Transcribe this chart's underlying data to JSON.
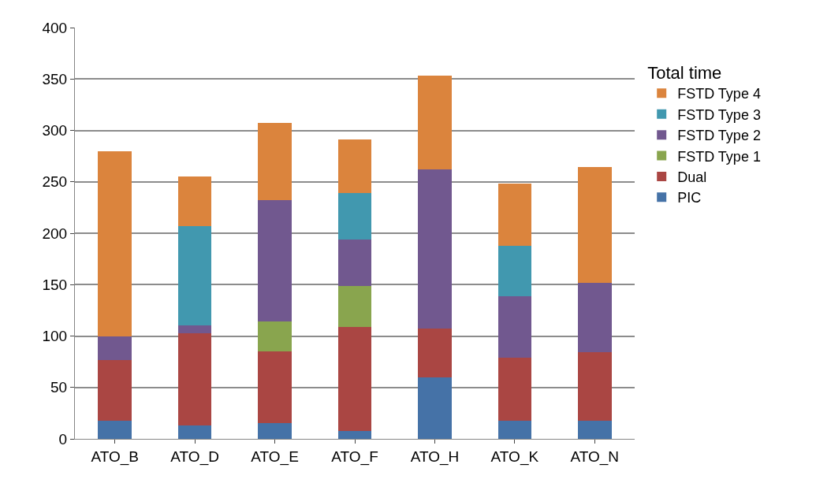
{
  "chart_data": {
    "type": "bar",
    "stacked": true,
    "legend_title": "Total time",
    "legend": "right",
    "grid": "y",
    "categories": [
      "ATO_B",
      "ATO_D",
      "ATO_E",
      "ATO_F",
      "ATO_H",
      "ATO_K",
      "ATO_N"
    ],
    "ylim": [
      0,
      400
    ],
    "yticks": [
      0,
      50,
      100,
      150,
      200,
      250,
      300,
      350,
      400
    ],
    "series": [
      {
        "name": "PIC",
        "color": "#4572a7",
        "values": [
          18,
          13,
          15,
          8,
          60,
          18,
          18
        ]
      },
      {
        "name": "Dual",
        "color": "#aa4643",
        "values": [
          59,
          90,
          70,
          101,
          47,
          61,
          66
        ]
      },
      {
        "name": "FSTD Type 1",
        "color": "#89a54e",
        "values": [
          0,
          0,
          29,
          40,
          0,
          0,
          0
        ]
      },
      {
        "name": "FSTD Type 2",
        "color": "#71588f",
        "values": [
          23,
          7,
          118,
          45,
          155,
          60,
          68
        ]
      },
      {
        "name": "FSTD Type 3",
        "color": "#4198af",
        "values": [
          0,
          97,
          0,
          45,
          0,
          49,
          0
        ]
      },
      {
        "name": "FSTD Type 4",
        "color": "#db843d",
        "values": [
          180,
          48,
          75,
          52,
          91,
          60,
          112
        ]
      }
    ]
  }
}
